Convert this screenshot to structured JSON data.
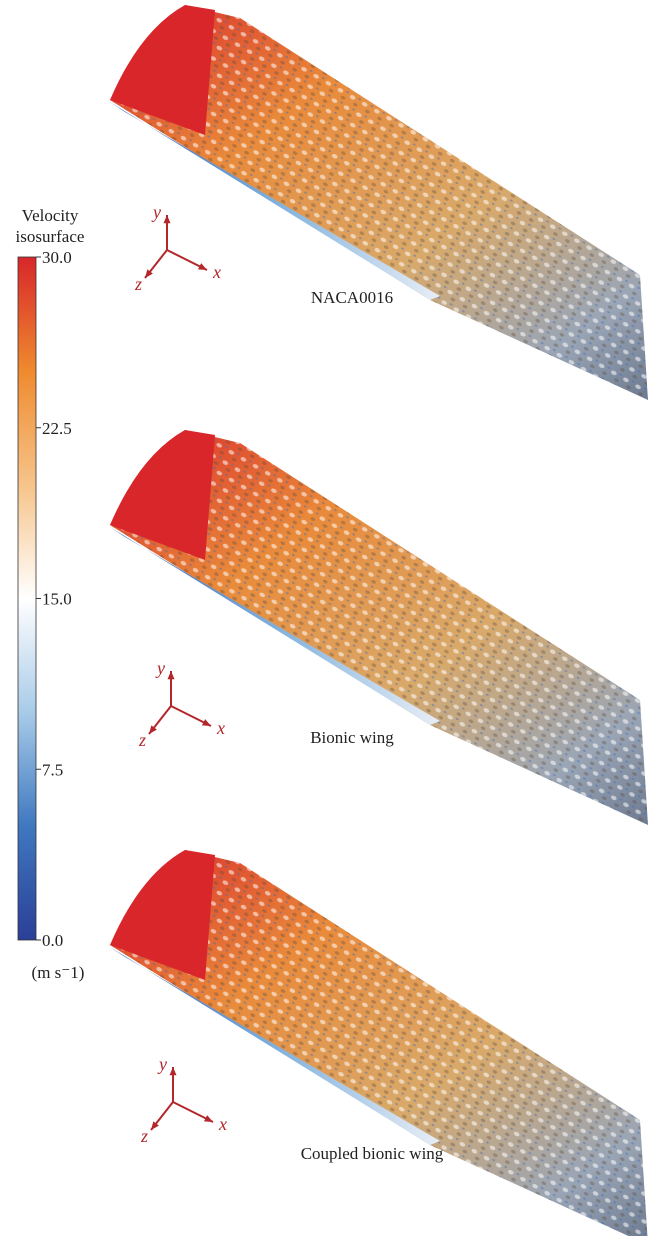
{
  "colorbar": {
    "title_lines": [
      "Velocity",
      "isosurface"
    ],
    "range": [
      0,
      30
    ],
    "ticks": [
      {
        "value": 30,
        "label": "30.0"
      },
      {
        "value": 22.5,
        "label": "22.5"
      },
      {
        "value": 15,
        "label": "15.0"
      },
      {
        "value": 7.5,
        "label": "7.5"
      },
      {
        "value": 0,
        "label": "0.0"
      }
    ],
    "unit": "(m s⁻1)",
    "colors": [
      "#2b3f97",
      "#3f78c0",
      "#a8cbe8",
      "#ffffff",
      "#f6c48a",
      "#ef8a2e",
      "#d8262a"
    ]
  },
  "panels": [
    {
      "label": "NACA0016",
      "axes": {
        "x": "x",
        "y": "y",
        "z": "z"
      }
    },
    {
      "label": "Bionic wing",
      "axes": {
        "x": "x",
        "y": "y",
        "z": "z"
      }
    },
    {
      "label": "Coupled bionic wing",
      "axes": {
        "x": "x",
        "y": "y",
        "z": "z"
      }
    }
  ]
}
